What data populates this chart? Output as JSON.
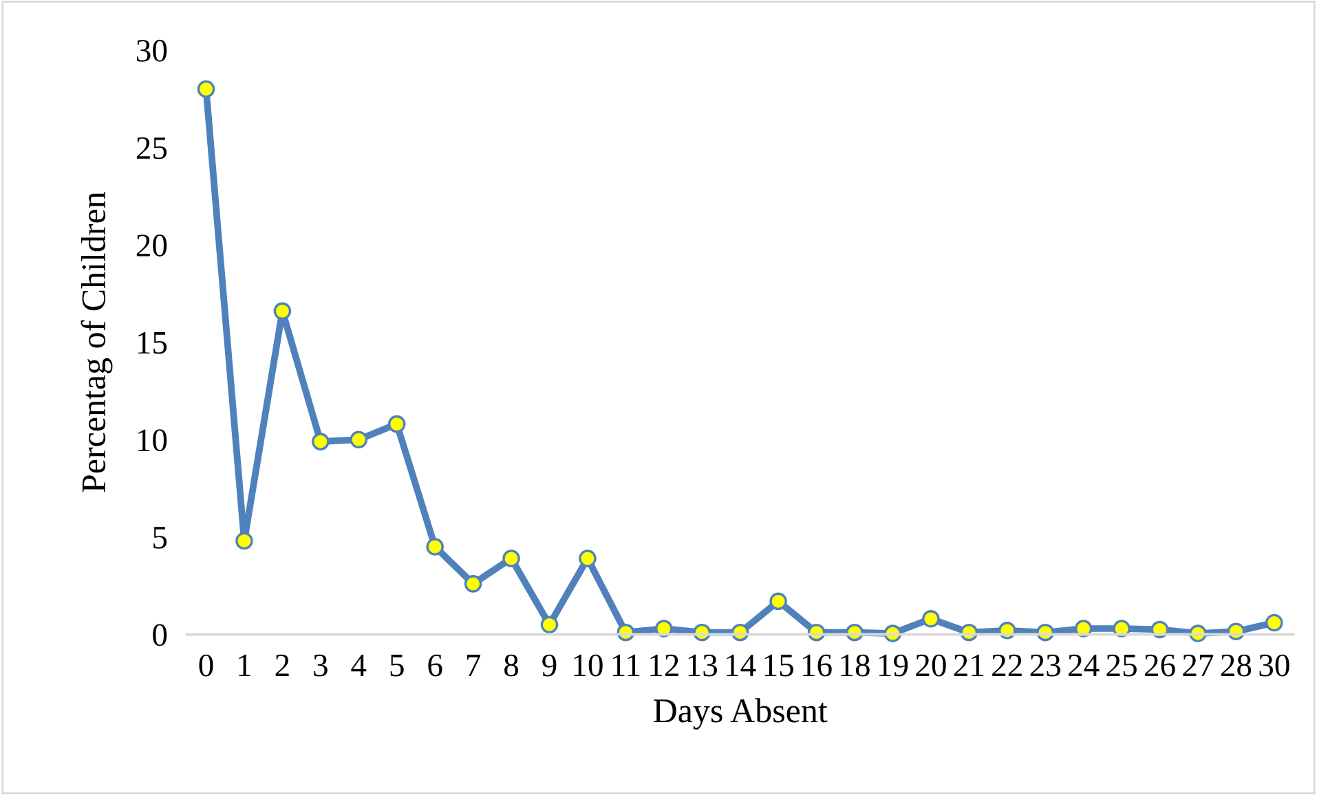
{
  "chart_data": {
    "type": "line",
    "xlabel": "Days Absent",
    "ylabel": "Percentag of Children",
    "categories": [
      "0",
      "1",
      "2",
      "3",
      "4",
      "5",
      "6",
      "7",
      "8",
      "9",
      "10",
      "11",
      "12",
      "13",
      "14",
      "15",
      "16",
      "18",
      "19",
      "20",
      "21",
      "22",
      "23",
      "24",
      "25",
      "26",
      "27",
      "28",
      "30"
    ],
    "series": [
      {
        "color": "#4f81bd",
        "values": [
          28.0,
          4.8,
          16.6,
          9.9,
          10.0,
          10.8,
          4.5,
          2.6,
          3.9,
          0.5,
          3.9,
          0.1,
          0.3,
          0.1,
          0.1,
          1.7,
          0.1,
          0.1,
          0.05,
          0.8,
          0.1,
          0.2,
          0.1,
          0.3,
          0.3,
          0.25,
          0.05,
          0.15,
          0.6
        ]
      }
    ],
    "ylim": [
      0,
      30
    ],
    "yticks": [
      0,
      5,
      10,
      15,
      20,
      25,
      30
    ],
    "grid": false,
    "legend": false,
    "marker": "circle",
    "line_style": "solid"
  }
}
